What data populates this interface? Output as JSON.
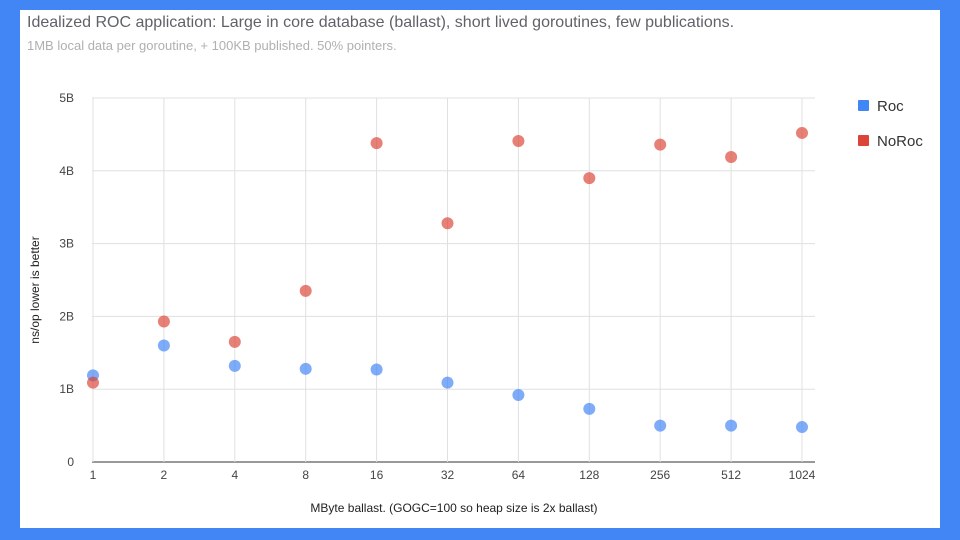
{
  "chart_data": {
    "type": "scatter",
    "title": "Idealized ROC application: Large in core database (ballast), short lived goroutines, few publications.",
    "subtitle": "1MB local data per goroutine, + 100KB published. 50% pointers.",
    "xlabel": "MByte ballast. (GOGC=100 so heap size is 2x ballast)",
    "ylabel": "ns/op lower is better",
    "categories": [
      "1",
      "2",
      "4",
      "8",
      "16",
      "32",
      "64",
      "128",
      "256",
      "512",
      "1024"
    ],
    "y_ticks": [
      "0",
      "1B",
      "2B",
      "3B",
      "4B",
      "5B"
    ],
    "ylim": [
      0,
      5000000000
    ],
    "grid": true,
    "legend_position": "right",
    "series": [
      {
        "name": "Roc",
        "color": "#4285f4",
        "values": [
          1190000000,
          1600000000,
          1320000000,
          1280000000,
          1270000000,
          1090000000,
          920000000,
          730000000,
          500000000,
          500000000,
          480000000
        ]
      },
      {
        "name": "NoRoc",
        "color": "#db4437",
        "values": [
          1090000000,
          1930000000,
          1650000000,
          2350000000,
          4380000000,
          3280000000,
          4410000000,
          3900000000,
          4360000000,
          4190000000,
          4520000000
        ]
      }
    ]
  }
}
